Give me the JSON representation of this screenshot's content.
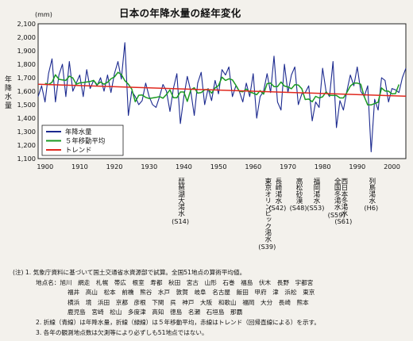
{
  "title": "日本の年降水量の経年変化",
  "chart_data": {
    "type": "line",
    "title": "日本の年降水量の経年変化",
    "unit": "(mm)",
    "ylabel": "年降水量",
    "xlabel": "",
    "xlim": [
      1900,
      2004
    ],
    "ylim": [
      1100,
      2100
    ],
    "xticks": [
      1900,
      1910,
      1920,
      1930,
      1940,
      1950,
      1960,
      1970,
      1980,
      1990,
      2000
    ],
    "yticks": [
      1100,
      1200,
      1300,
      1400,
      1500,
      1600,
      1700,
      1800,
      1900,
      2000,
      2100
    ],
    "grid": true,
    "legend_position": "bottom-left",
    "series": [
      {
        "name": "年降水量",
        "color": "#1c2a8f",
        "x": [
          1898,
          1899,
          1900,
          1901,
          1902,
          1903,
          1904,
          1905,
          1906,
          1907,
          1908,
          1909,
          1910,
          1911,
          1912,
          1913,
          1914,
          1915,
          1916,
          1917,
          1918,
          1919,
          1920,
          1921,
          1922,
          1923,
          1924,
          1925,
          1926,
          1927,
          1928,
          1929,
          1930,
          1931,
          1932,
          1933,
          1934,
          1935,
          1936,
          1937,
          1938,
          1939,
          1940,
          1941,
          1942,
          1943,
          1944,
          1945,
          1946,
          1947,
          1948,
          1949,
          1950,
          1951,
          1952,
          1953,
          1954,
          1955,
          1956,
          1957,
          1958,
          1959,
          1960,
          1961,
          1962,
          1963,
          1964,
          1965,
          1966,
          1967,
          1968,
          1969,
          1970,
          1971,
          1972,
          1973,
          1974,
          1975,
          1976,
          1977,
          1978,
          1979,
          1980,
          1981,
          1982,
          1983,
          1984,
          1985,
          1986,
          1987,
          1988,
          1989,
          1990,
          1991,
          1992,
          1993,
          1994,
          1995,
          1996,
          1997,
          1998,
          1999,
          2000,
          2001,
          2002,
          2003,
          2004
        ],
        "values": [
          1560,
          1640,
          1520,
          1730,
          1840,
          1520,
          1720,
          1800,
          1560,
          1820,
          1600,
          1660,
          1720,
          1560,
          1760,
          1620,
          1680,
          1640,
          1700,
          1600,
          1720,
          1590,
          1730,
          1820,
          1690,
          1960,
          1420,
          1600,
          1560,
          1500,
          1530,
          1660,
          1560,
          1500,
          1480,
          1560,
          1650,
          1600,
          1450,
          1620,
          1730,
          1360,
          1560,
          1710,
          1600,
          1420,
          1660,
          1740,
          1500,
          1620,
          1530,
          1680,
          1580,
          1760,
          1720,
          1780,
          1560,
          1640,
          1600,
          1520,
          1660,
          1560,
          1730,
          1400,
          1560,
          1600,
          1730,
          1590,
          1860,
          1520,
          1460,
          1800,
          1590,
          1720,
          1780,
          1500,
          1580,
          1590,
          1640,
          1380,
          1520,
          1480,
          1770,
          1600,
          1560,
          1820,
          1330,
          1530,
          1460,
          1600,
          1720,
          1640,
          1780,
          1600,
          1560,
          1640,
          1150,
          1540,
          1460,
          1700,
          1680,
          1520,
          1620,
          1610,
          1590,
          1700,
          1770
        ]
      },
      {
        "name": "５年移動平均",
        "color": "#1a9a22",
        "x": [
          1900,
          1901,
          1902,
          1903,
          1904,
          1905,
          1906,
          1907,
          1908,
          1909,
          1910,
          1911,
          1912,
          1913,
          1914,
          1915,
          1916,
          1917,
          1918,
          1919,
          1920,
          1921,
          1922,
          1923,
          1924,
          1925,
          1926,
          1927,
          1928,
          1929,
          1930,
          1931,
          1932,
          1933,
          1934,
          1935,
          1936,
          1937,
          1938,
          1939,
          1940,
          1941,
          1942,
          1943,
          1944,
          1945,
          1946,
          1947,
          1948,
          1949,
          1950,
          1951,
          1952,
          1953,
          1954,
          1955,
          1956,
          1957,
          1958,
          1959,
          1960,
          1961,
          1962,
          1963,
          1964,
          1965,
          1966,
          1967,
          1968,
          1969,
          1970,
          1971,
          1972,
          1973,
          1974,
          1975,
          1976,
          1977,
          1978,
          1979,
          1980,
          1981,
          1982,
          1983,
          1984,
          1985,
          1986,
          1987,
          1988,
          1989,
          1990,
          1991,
          1992,
          1993,
          1994,
          1995,
          1996,
          1997,
          1998,
          1999,
          2000,
          2001,
          2002
        ],
        "values": [
          1658,
          1650,
          1666,
          1722,
          1688,
          1684,
          1680,
          1712,
          1698,
          1652,
          1662,
          1664,
          1668,
          1672,
          1680,
          1648,
          1668,
          1652,
          1666,
          1692,
          1706,
          1740,
          1724,
          1678,
          1652,
          1616,
          1522,
          1570,
          1572,
          1554,
          1546,
          1550,
          1554,
          1560,
          1548,
          1576,
          1610,
          1552,
          1552,
          1594,
          1594,
          1524,
          1610,
          1626,
          1586,
          1590,
          1610,
          1614,
          1586,
          1624,
          1642,
          1704,
          1680,
          1692,
          1684,
          1644,
          1600,
          1596,
          1616,
          1594,
          1586,
          1574,
          1604,
          1578,
          1656,
          1660,
          1634,
          1634,
          1668,
          1638,
          1632,
          1618,
          1648,
          1646,
          1618,
          1538,
          1542,
          1522,
          1562,
          1550,
          1558,
          1594,
          1570,
          1568,
          1568,
          1550,
          1550,
          1590,
          1638,
          1660,
          1660,
          1652,
          1560,
          1498,
          1498,
          1508,
          1518,
          1624,
          1602,
          1600,
          1580,
          1582,
          1650
        ]
      },
      {
        "name": "トレンド",
        "color": "#e0281e",
        "x": [
          1898,
          2004
        ],
        "values": [
          1652,
          1563
        ]
      }
    ],
    "annotations": [
      {
        "x": 1939,
        "label": "琵琶湖大渇水",
        "era": "(S14)"
      },
      {
        "x": 1964,
        "label": "東京オリンピック渇水",
        "era": "(S39)"
      },
      {
        "x": 1967,
        "label": "長崎渇水",
        "era": "(S42)"
      },
      {
        "x": 1973,
        "label": "高松砂漠",
        "era": "(S48)"
      },
      {
        "x": 1978,
        "label": "福岡渇水",
        "era": "(S53)"
      },
      {
        "x": 1984,
        "label": "全国冬渇水",
        "era": "(S59)"
      },
      {
        "x": 1986,
        "label": "西日本冬渇水",
        "era": "(S61)"
      },
      {
        "x": 1994,
        "label": "列島渇水",
        "era": "(H6)"
      }
    ]
  },
  "notes": {
    "line1": "(注) 1.  気象庁資料に基づいて国土交通省水資源部で試算。全国51地点の算術平均値。",
    "line2": "地点名：旭川　網走　札幌　帯広　根室　寿都　秋田　宮古　山形　石巻　福島　伏木　長野　宇都宮",
    "line3": "福井　高山　松本　前橋　熊谷　水戸　敦賀　岐阜　名古屋　飯田　甲府　津　浜松　東京",
    "line4": "横浜　境　浜田　京都　彦根　下関　呉　神戸　大阪　和歌山　福岡　大分　長崎　熊本",
    "line5": "鹿児島　宮崎　松山　多度津　高知　徳島　名瀬　石垣島　那覇",
    "line6": "2.  折線（青線）は年降水量，折線（緑線）は５年移動平均，赤線はトレンド（回帰直線による）を示す。",
    "line7": "3.  各年の観測地点数は欠測等により必ずしも51地点ではない。"
  }
}
